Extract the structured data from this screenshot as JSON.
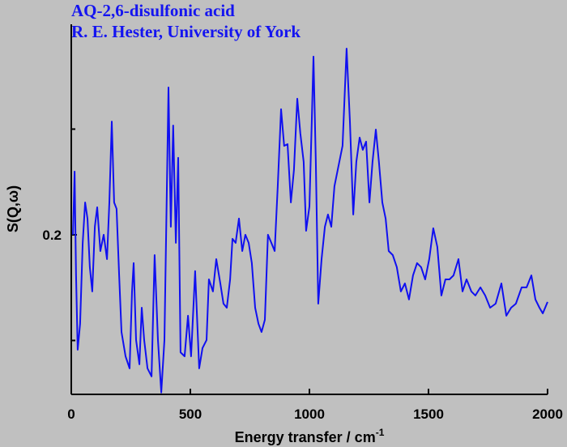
{
  "chart_data": {
    "type": "line",
    "title": "AQ-2,6-disulfonic acid",
    "subtitle": "R. E. Hester, University of York",
    "x_label": "Energy transfer / cm",
    "x_label_sup": "-1",
    "y_label": "S(Q,ω)",
    "xlim": [
      0,
      2000
    ],
    "xticks": [
      0,
      500,
      1000,
      1500,
      2000
    ],
    "ylim": [
      0.1245,
      0.2996
    ],
    "yticks": [
      0.2
    ],
    "yminor_ticks": [
      0.15,
      0.25
    ],
    "series": [
      {
        "color": "#1010f0",
        "x": [
          7,
          14,
          20,
          27,
          37,
          48,
          58,
          68,
          78,
          88,
          99,
          109,
          122,
          136,
          150,
          160,
          170,
          180,
          190,
          201,
          211,
          228,
          245,
          255,
          262,
          272,
          286,
          296,
          306,
          320,
          337,
          350,
          364,
          378,
          391,
          401,
          408,
          418,
          428,
          439,
          449,
          459,
          476,
          490,
          503,
          520,
          537,
          551,
          568,
          578,
          595,
          609,
          626,
          639,
          653,
          667,
          677,
          690,
          704,
          718,
          731,
          745,
          758,
          772,
          786,
          799,
          813,
          826,
          840,
          854,
          867,
          881,
          894,
          908,
          922,
          935,
          949,
          962,
          976,
          986,
          1000,
          1010,
          1017,
          1027,
          1037,
          1051,
          1065,
          1078,
          1092,
          1105,
          1122,
          1139,
          1156,
          1170,
          1184,
          1197,
          1211,
          1224,
          1238,
          1252,
          1265,
          1279,
          1292,
          1306,
          1320,
          1333,
          1350,
          1367,
          1384,
          1401,
          1418,
          1435,
          1452,
          1469,
          1486,
          1503,
          1520,
          1537,
          1554,
          1571,
          1588,
          1605,
          1626,
          1643,
          1660,
          1680,
          1697,
          1718,
          1738,
          1759,
          1782,
          1806,
          1827,
          1847,
          1867,
          1891,
          1912,
          1932,
          1949,
          1966,
          1980,
          2000
        ],
        "values": [
          0.2,
          0.2299,
          0.1808,
          0.1456,
          0.1579,
          0.1962,
          0.2153,
          0.2077,
          0.1847,
          0.1732,
          0.2038,
          0.213,
          0.1923,
          0.2,
          0.1885,
          0.2153,
          0.2536,
          0.2153,
          0.2123,
          0.1808,
          0.154,
          0.1425,
          0.1368,
          0.1732,
          0.1866,
          0.1502,
          0.1387,
          0.1655,
          0.1502,
          0.1368,
          0.133,
          0.1904,
          0.1502,
          0.1254,
          0.1502,
          0.2192,
          0.2697,
          0.2038,
          0.2517,
          0.1962,
          0.2364,
          0.1444,
          0.1425,
          0.1617,
          0.1425,
          0.1828,
          0.1368,
          0.1464,
          0.1502,
          0.1789,
          0.1732,
          0.1885,
          0.177,
          0.1674,
          0.1655,
          0.1789,
          0.1981,
          0.1962,
          0.2077,
          0.1923,
          0.2,
          0.1962,
          0.1866,
          0.1655,
          0.1579,
          0.154,
          0.1598,
          0.2,
          0.1962,
          0.1923,
          0.223,
          0.2594,
          0.2421,
          0.2429,
          0.2153,
          0.2307,
          0.2644,
          0.2479,
          0.2345,
          0.2019,
          0.2134,
          0.2536,
          0.2843,
          0.2345,
          0.1674,
          0.1885,
          0.2038,
          0.2096,
          0.2038,
          0.223,
          0.2326,
          0.2421,
          0.2881,
          0.2536,
          0.2096,
          0.2345,
          0.246,
          0.2402,
          0.2441,
          0.2153,
          0.2345,
          0.2498,
          0.2345,
          0.2153,
          0.2077,
          0.1923,
          0.1904,
          0.1847,
          0.1732,
          0.177,
          0.1694,
          0.1808,
          0.1866,
          0.1847,
          0.1789,
          0.1885,
          0.2031,
          0.1943,
          0.1713,
          0.1789,
          0.1789,
          0.1808,
          0.1885,
          0.1732,
          0.1789,
          0.1732,
          0.1713,
          0.1751,
          0.1713,
          0.1655,
          0.1674,
          0.177,
          0.1617,
          0.1655,
          0.1674,
          0.1751,
          0.1751,
          0.1808,
          0.1694,
          0.1655,
          0.1628,
          0.1682
        ]
      }
    ]
  }
}
